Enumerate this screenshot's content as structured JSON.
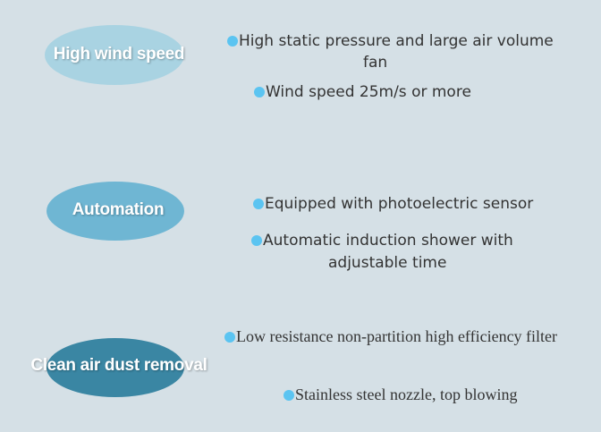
{
  "colors": {
    "background": "#d5e0e6",
    "bullet": "#5bc4f1",
    "ellipse_1": "#a9d3e2",
    "ellipse_2": "#6fb6d3",
    "ellipse_3": "#3a86a3"
  },
  "sections": [
    {
      "title": "High wind speed",
      "items": [
        "High static pressure and large air volume",
        "fan",
        "Wind speed 25m/s or more"
      ]
    },
    {
      "title": "Automation",
      "items": [
        "Equipped with photoelectric sensor",
        "Automatic induction shower with",
        "adjustable time"
      ]
    },
    {
      "title": "Clean air dust removal",
      "items": [
        "Low resistance non-partition high efficiency filter",
        "Stainless steel nozzle, top blowing"
      ]
    }
  ]
}
